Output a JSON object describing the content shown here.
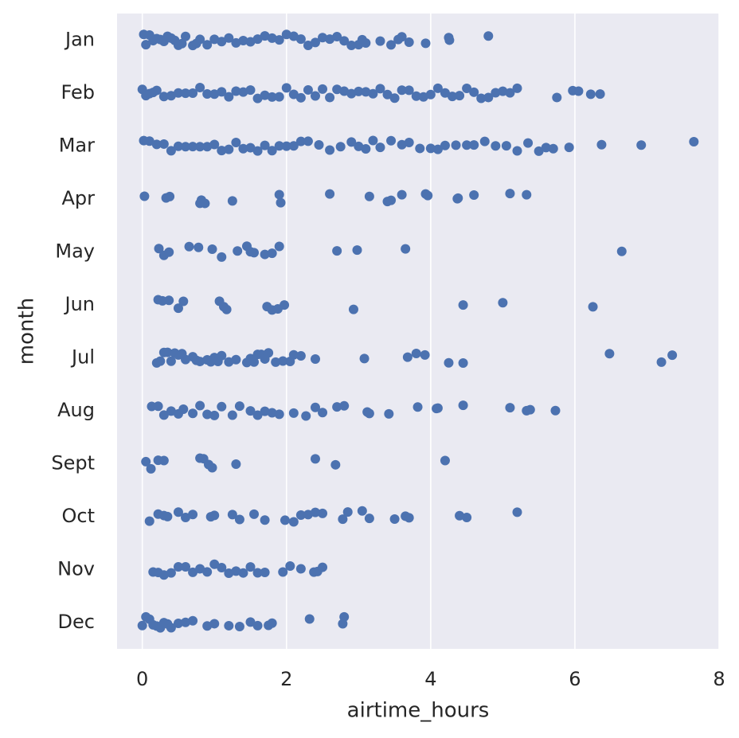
{
  "chart_data": {
    "type": "strip",
    "x_label": "airtime_hours",
    "y_label": "month",
    "categories": [
      "Jan",
      "Feb",
      "Mar",
      "Apr",
      "May",
      "Jun",
      "Jul",
      "Aug",
      "Sept",
      "Oct",
      "Nov",
      "Dec"
    ],
    "color": "#4c72b0",
    "grid": true,
    "xlim": [
      -0.35,
      8.0
    ],
    "xticks": [
      0,
      2,
      4,
      6,
      8
    ],
    "values": [
      [
        0.02,
        0.05,
        0.1,
        0.15,
        0.2,
        0.25,
        0.3,
        0.35,
        0.4,
        0.45,
        0.5,
        0.55,
        0.6,
        0.7,
        0.75,
        0.8,
        0.9,
        1.0,
        1.1,
        1.2,
        1.3,
        1.4,
        1.5,
        1.6,
        1.7,
        1.8,
        1.9,
        2.0,
        2.1,
        2.2,
        2.3,
        2.4,
        2.5,
        2.6,
        2.7,
        2.8,
        2.9,
        3.0,
        3.05,
        3.1,
        3.3,
        3.45,
        3.55,
        3.6,
        3.7,
        3.93,
        4.25,
        4.26,
        4.8
      ],
      [
        0.0,
        0.05,
        0.1,
        0.15,
        0.2,
        0.3,
        0.4,
        0.5,
        0.6,
        0.7,
        0.8,
        0.9,
        1.0,
        1.1,
        1.2,
        1.3,
        1.4,
        1.5,
        1.6,
        1.7,
        1.8,
        1.9,
        2.0,
        2.1,
        2.2,
        2.3,
        2.4,
        2.5,
        2.6,
        2.7,
        2.8,
        2.9,
        3.0,
        3.1,
        3.2,
        3.3,
        3.4,
        3.5,
        3.6,
        3.7,
        3.8,
        3.9,
        4.0,
        4.1,
        4.2,
        4.3,
        4.4,
        4.5,
        4.6,
        4.7,
        4.8,
        4.9,
        5.0,
        5.1,
        5.2,
        5.75,
        5.97,
        6.05,
        6.22,
        6.35
      ],
      [
        0.02,
        0.1,
        0.2,
        0.3,
        0.4,
        0.5,
        0.6,
        0.7,
        0.8,
        0.9,
        1.0,
        1.1,
        1.2,
        1.3,
        1.4,
        1.5,
        1.6,
        1.7,
        1.8,
        1.9,
        2.0,
        2.1,
        2.2,
        2.3,
        2.45,
        2.6,
        2.75,
        2.9,
        3.0,
        3.1,
        3.2,
        3.3,
        3.45,
        3.6,
        3.7,
        3.85,
        4.0,
        4.1,
        4.2,
        4.35,
        4.5,
        4.6,
        4.75,
        4.9,
        5.05,
        5.2,
        5.35,
        5.5,
        5.6,
        5.7,
        5.92,
        6.37,
        6.92,
        7.65
      ],
      [
        0.03,
        0.33,
        0.38,
        0.8,
        0.82,
        0.87,
        1.25,
        1.9,
        1.92,
        2.6,
        3.15,
        3.4,
        3.45,
        3.6,
        3.93,
        3.96,
        4.37,
        4.38,
        4.6,
        5.1,
        5.33
      ],
      [
        0.23,
        0.3,
        0.37,
        0.65,
        0.78,
        0.97,
        1.1,
        1.32,
        1.45,
        1.5,
        1.55,
        1.7,
        1.8,
        1.9,
        2.7,
        2.98,
        3.65,
        6.65
      ],
      [
        0.22,
        0.28,
        0.37,
        0.5,
        0.57,
        1.07,
        1.13,
        1.17,
        1.73,
        1.8,
        1.88,
        1.97,
        2.93,
        4.45,
        5.0,
        6.25
      ],
      [
        0.2,
        0.25,
        0.3,
        0.35,
        0.4,
        0.45,
        0.5,
        0.55,
        0.6,
        0.7,
        0.75,
        0.8,
        0.9,
        0.95,
        1.0,
        1.05,
        1.1,
        1.2,
        1.3,
        1.45,
        1.5,
        1.55,
        1.6,
        1.65,
        1.7,
        1.75,
        1.85,
        1.95,
        2.05,
        2.1,
        2.2,
        2.4,
        3.08,
        3.68,
        3.8,
        3.92,
        4.25,
        4.45,
        6.48,
        7.2,
        7.35
      ],
      [
        0.13,
        0.22,
        0.3,
        0.4,
        0.5,
        0.57,
        0.7,
        0.8,
        0.9,
        1.0,
        1.1,
        1.25,
        1.35,
        1.5,
        1.6,
        1.7,
        1.8,
        1.9,
        2.1,
        2.27,
        2.4,
        2.5,
        2.7,
        2.8,
        3.12,
        3.15,
        3.42,
        3.82,
        4.08,
        4.1,
        4.45,
        5.1,
        5.33,
        5.38,
        5.73
      ],
      [
        0.05,
        0.12,
        0.22,
        0.3,
        0.8,
        0.85,
        0.92,
        0.97,
        1.3,
        2.4,
        2.68,
        4.2
      ],
      [
        0.1,
        0.22,
        0.3,
        0.35,
        0.5,
        0.6,
        0.7,
        0.95,
        1.0,
        1.25,
        1.35,
        1.55,
        1.7,
        1.98,
        2.1,
        2.2,
        2.3,
        2.4,
        2.5,
        2.78,
        2.85,
        3.05,
        3.15,
        3.5,
        3.65,
        3.7,
        4.4,
        4.5,
        5.2
      ],
      [
        0.15,
        0.22,
        0.3,
        0.4,
        0.5,
        0.6,
        0.7,
        0.8,
        0.9,
        1.0,
        1.1,
        1.2,
        1.3,
        1.4,
        1.5,
        1.6,
        1.7,
        1.95,
        2.05,
        2.2,
        2.38,
        2.43,
        2.5
      ],
      [
        0.0,
        0.05,
        0.1,
        0.15,
        0.2,
        0.25,
        0.3,
        0.35,
        0.4,
        0.5,
        0.6,
        0.7,
        0.9,
        1.0,
        1.2,
        1.35,
        1.5,
        1.6,
        1.75,
        1.8,
        2.32,
        2.78,
        2.8
      ]
    ]
  }
}
